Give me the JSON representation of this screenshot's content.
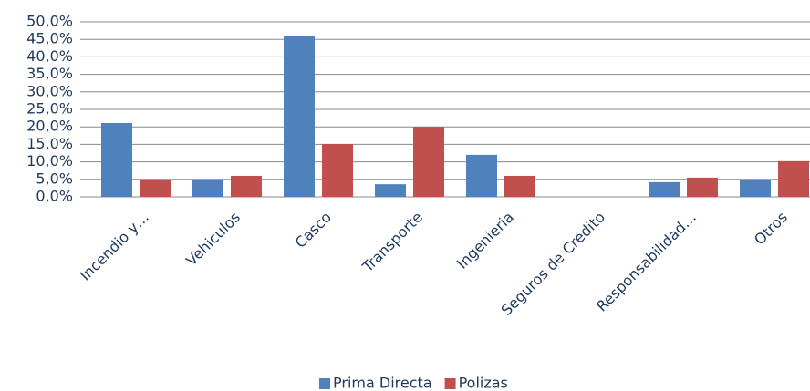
{
  "chart_data": {
    "type": "bar",
    "categories": [
      "Incendio y…",
      "Vehiculos",
      "Casco",
      "Transporte",
      "Ingenieria",
      "Seguros de Crédito",
      "Responsabilidad…",
      "Otros"
    ],
    "series": [
      {
        "name": "Prima Directa",
        "color": "#4f81bd",
        "values": [
          21.1,
          4.7,
          46.0,
          3.6,
          12.0,
          0,
          4.2,
          4.9
        ]
      },
      {
        "name": "Polizas",
        "color": "#c0504d",
        "values": [
          5.0,
          6.0,
          15.1,
          20.0,
          6.0,
          0,
          5.5,
          10.2
        ]
      }
    ],
    "ylim": [
      0,
      50
    ],
    "yticks": [
      {
        "value": 0,
        "label": "0,0%"
      },
      {
        "value": 5,
        "label": "5,0%"
      },
      {
        "value": 10,
        "label": "10,0%"
      },
      {
        "value": 15,
        "label": "15,0%"
      },
      {
        "value": 20,
        "label": "20,0%"
      },
      {
        "value": 25,
        "label": "25,0%"
      },
      {
        "value": 30,
        "label": "30,0%"
      },
      {
        "value": 35,
        "label": "35,0%"
      },
      {
        "value": 40,
        "label": "40,0%"
      },
      {
        "value": 45,
        "label": "45,0%"
      },
      {
        "value": 50,
        "label": "50,0%"
      }
    ],
    "grid": true,
    "legend": "bottom"
  }
}
